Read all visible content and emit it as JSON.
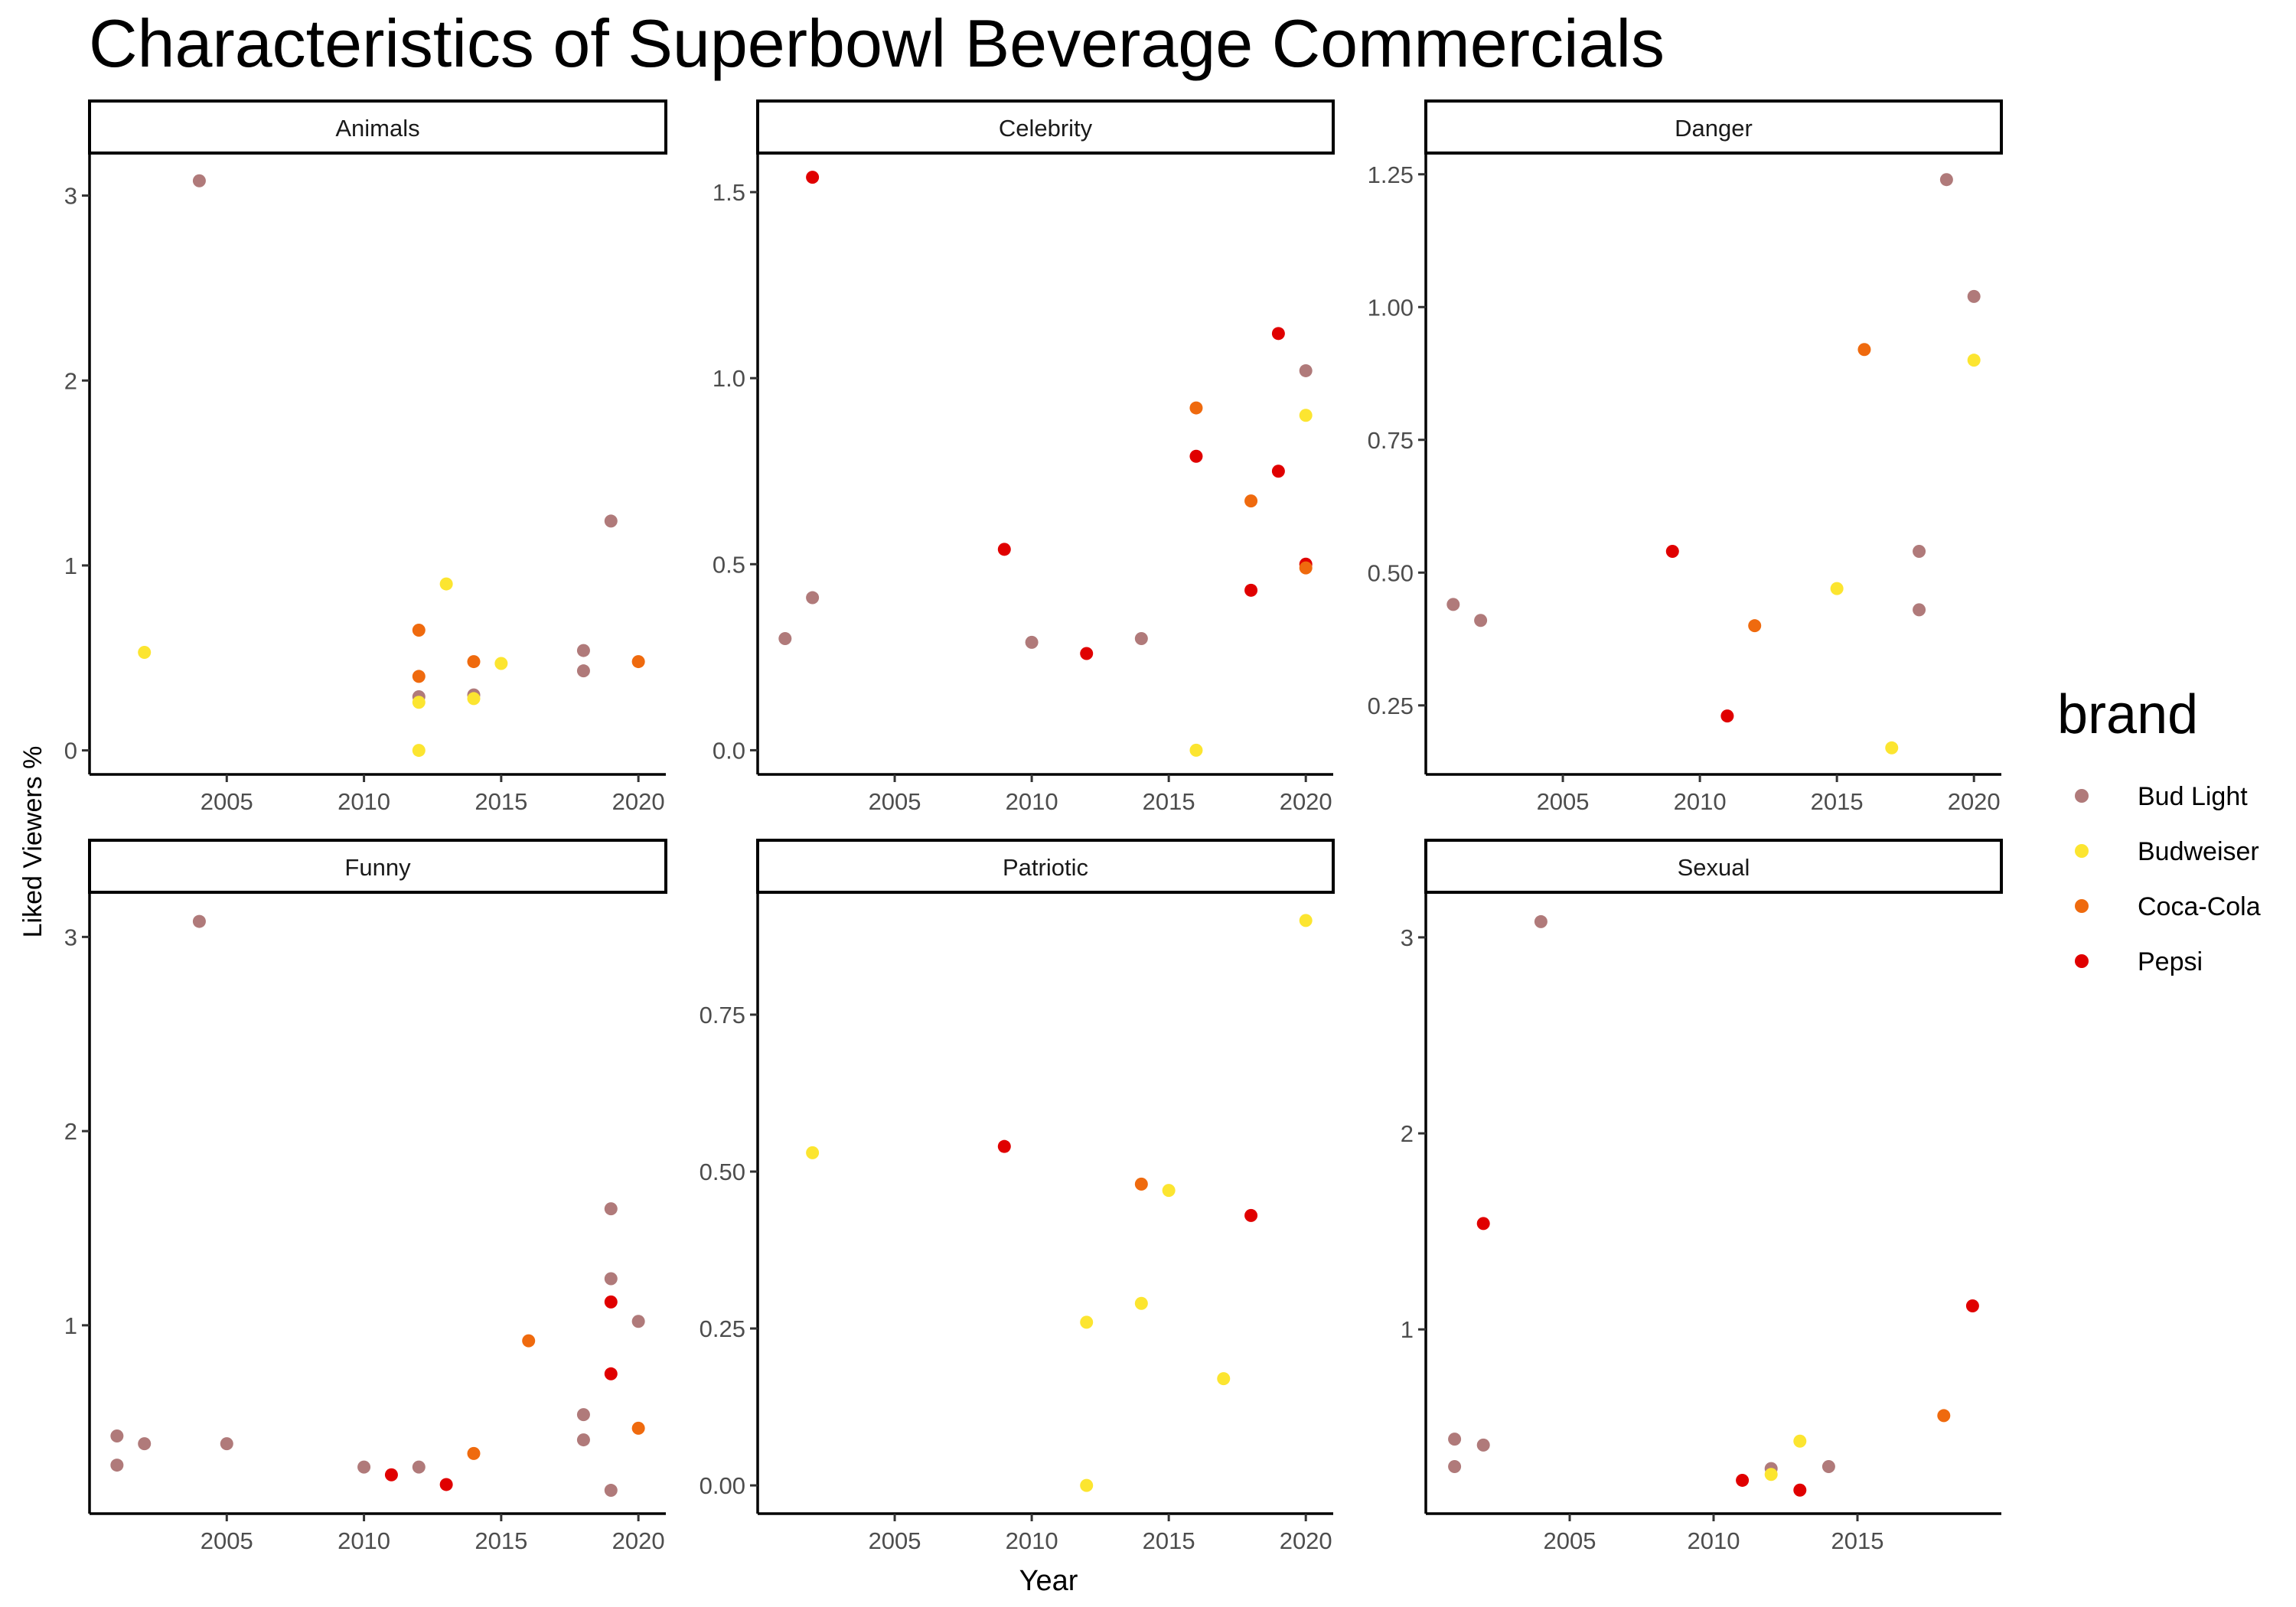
{
  "chart_data": {
    "type": "scatter",
    "title": "Characteristics of Superbowl Beverage Commercials",
    "xlabel": "Year",
    "ylabel": "Liked Viewers %",
    "grid": false,
    "legend": {
      "title": "brand",
      "position": "right",
      "entries": [
        {
          "name": "Bud Light",
          "color": "#B07A7A"
        },
        {
          "name": "Budweiser",
          "color": "#FCE530"
        },
        {
          "name": "Coca-Cola",
          "color": "#EF6A0E"
        },
        {
          "name": "Pepsi",
          "color": "#E00000"
        }
      ]
    },
    "panels": [
      {
        "label": "Animals",
        "xlim": [
          2000,
          2021
        ],
        "ylim": [
          -0.13,
          3.23
        ],
        "xticks": [
          2005,
          2010,
          2015,
          2020
        ],
        "yticks": [
          0,
          1,
          2,
          3
        ],
        "ytick_labels": [
          "0",
          "1",
          "2",
          "3"
        ],
        "points": [
          {
            "brand": "Budweiser",
            "x": 2002,
            "y": 0.53
          },
          {
            "brand": "Bud Light",
            "x": 2004,
            "y": 3.08
          },
          {
            "brand": "Coca-Cola",
            "x": 2012,
            "y": 0.65
          },
          {
            "brand": "Coca-Cola",
            "x": 2012,
            "y": 0.4
          },
          {
            "brand": "Bud Light",
            "x": 2012,
            "y": 0.29
          },
          {
            "brand": "Budweiser",
            "x": 2012,
            "y": 0.26
          },
          {
            "brand": "Budweiser",
            "x": 2012,
            "y": 0.0
          },
          {
            "brand": "Budweiser",
            "x": 2013,
            "y": 0.9
          },
          {
            "brand": "Coca-Cola",
            "x": 2014,
            "y": 0.48
          },
          {
            "brand": "Bud Light",
            "x": 2014,
            "y": 0.3
          },
          {
            "brand": "Budweiser",
            "x": 2014,
            "y": 0.28
          },
          {
            "brand": "Budweiser",
            "x": 2015,
            "y": 0.47
          },
          {
            "brand": "Bud Light",
            "x": 2018,
            "y": 0.54
          },
          {
            "brand": "Bud Light",
            "x": 2018,
            "y": 0.43
          },
          {
            "brand": "Bud Light",
            "x": 2019,
            "y": 1.24
          },
          {
            "brand": "Coca-Cola",
            "x": 2020,
            "y": 0.48
          }
        ]
      },
      {
        "label": "Celebrity",
        "xlim": [
          2000,
          2021
        ],
        "ylim": [
          -0.065,
          1.605
        ],
        "xticks": [
          2005,
          2010,
          2015,
          2020
        ],
        "yticks": [
          0,
          0.5,
          1.0,
          1.5
        ],
        "ytick_labels": [
          "0.0",
          "0.5",
          "1.0",
          "1.5"
        ],
        "points": [
          {
            "brand": "Bud Light",
            "x": 2001,
            "y": 0.3
          },
          {
            "brand": "Pepsi",
            "x": 2002,
            "y": 1.54
          },
          {
            "brand": "Bud Light",
            "x": 2002,
            "y": 0.41
          },
          {
            "brand": "Pepsi",
            "x": 2009,
            "y": 0.54
          },
          {
            "brand": "Bud Light",
            "x": 2010,
            "y": 0.29
          },
          {
            "brand": "Pepsi",
            "x": 2012,
            "y": 0.26
          },
          {
            "brand": "Bud Light",
            "x": 2014,
            "y": 0.3
          },
          {
            "brand": "Coca-Cola",
            "x": 2016,
            "y": 0.92
          },
          {
            "brand": "Pepsi",
            "x": 2016,
            "y": 0.79
          },
          {
            "brand": "Budweiser",
            "x": 2016,
            "y": 0.0
          },
          {
            "brand": "Coca-Cola",
            "x": 2018,
            "y": 0.67
          },
          {
            "brand": "Pepsi",
            "x": 2018,
            "y": 0.43
          },
          {
            "brand": "Pepsi",
            "x": 2019,
            "y": 1.12
          },
          {
            "brand": "Pepsi",
            "x": 2019,
            "y": 0.75
          },
          {
            "brand": "Bud Light",
            "x": 2020,
            "y": 1.02
          },
          {
            "brand": "Budweiser",
            "x": 2020,
            "y": 0.9
          },
          {
            "brand": "Pepsi",
            "x": 2020,
            "y": 0.5
          },
          {
            "brand": "Coca-Cola",
            "x": 2020,
            "y": 0.49
          }
        ]
      },
      {
        "label": "Danger",
        "xlim": [
          2000,
          2021
        ],
        "ylim": [
          0.12,
          1.29
        ],
        "xticks": [
          2005,
          2010,
          2015,
          2020
        ],
        "yticks": [
          0.25,
          0.5,
          0.75,
          1.0,
          1.25
        ],
        "ytick_labels": [
          "0.25",
          "0.50",
          "0.75",
          "1.00",
          "1.25"
        ],
        "points": [
          {
            "brand": "Bud Light",
            "x": 2001,
            "y": 0.44
          },
          {
            "brand": "Bud Light",
            "x": 2002,
            "y": 0.41
          },
          {
            "brand": "Pepsi",
            "x": 2009,
            "y": 0.54
          },
          {
            "brand": "Pepsi",
            "x": 2011,
            "y": 0.23
          },
          {
            "brand": "Coca-Cola",
            "x": 2012,
            "y": 0.4
          },
          {
            "brand": "Budweiser",
            "x": 2015,
            "y": 0.47
          },
          {
            "brand": "Coca-Cola",
            "x": 2016,
            "y": 0.92
          },
          {
            "brand": "Budweiser",
            "x": 2017,
            "y": 0.17
          },
          {
            "brand": "Bud Light",
            "x": 2018,
            "y": 0.54
          },
          {
            "brand": "Bud Light",
            "x": 2018,
            "y": 0.43
          },
          {
            "brand": "Bud Light",
            "x": 2019,
            "y": 1.24
          },
          {
            "brand": "Bud Light",
            "x": 2020,
            "y": 1.02
          },
          {
            "brand": "Budweiser",
            "x": 2020,
            "y": 0.9
          }
        ]
      },
      {
        "label": "Funny",
        "xlim": [
          2000,
          2021
        ],
        "ylim": [
          0.03,
          3.23
        ],
        "xticks": [
          2005,
          2010,
          2015,
          2020
        ],
        "yticks": [
          1,
          2,
          3
        ],
        "ytick_labels": [
          "1",
          "2",
          "3"
        ],
        "points": [
          {
            "brand": "Bud Light",
            "x": 2001,
            "y": 0.43
          },
          {
            "brand": "Bud Light",
            "x": 2001,
            "y": 0.28
          },
          {
            "brand": "Bud Light",
            "x": 2002,
            "y": 0.39
          },
          {
            "brand": "Bud Light",
            "x": 2004,
            "y": 3.08
          },
          {
            "brand": "Bud Light",
            "x": 2005,
            "y": 0.39
          },
          {
            "brand": "Bud Light",
            "x": 2010,
            "y": 0.27
          },
          {
            "brand": "Pepsi",
            "x": 2011,
            "y": 0.23
          },
          {
            "brand": "Bud Light",
            "x": 2012,
            "y": 0.27
          },
          {
            "brand": "Pepsi",
            "x": 2013,
            "y": 0.18
          },
          {
            "brand": "Coca-Cola",
            "x": 2014,
            "y": 0.34
          },
          {
            "brand": "Coca-Cola",
            "x": 2016,
            "y": 0.92
          },
          {
            "brand": "Bud Light",
            "x": 2018,
            "y": 0.54
          },
          {
            "brand": "Bud Light",
            "x": 2018,
            "y": 0.41
          },
          {
            "brand": "Bud Light",
            "x": 2019,
            "y": 1.6
          },
          {
            "brand": "Bud Light",
            "x": 2019,
            "y": 1.24
          },
          {
            "brand": "Pepsi",
            "x": 2019,
            "y": 1.12
          },
          {
            "brand": "Pepsi",
            "x": 2019,
            "y": 0.75
          },
          {
            "brand": "Bud Light",
            "x": 2019,
            "y": 0.15
          },
          {
            "brand": "Bud Light",
            "x": 2020,
            "y": 1.02
          },
          {
            "brand": "Coca-Cola",
            "x": 2020,
            "y": 0.47
          }
        ]
      },
      {
        "label": "Patriotic",
        "xlim": [
          2000,
          2021
        ],
        "ylim": [
          -0.045,
          0.945
        ],
        "xticks": [
          2005,
          2010,
          2015,
          2020
        ],
        "yticks": [
          0,
          0.25,
          0.5,
          0.75
        ],
        "ytick_labels": [
          "0.00",
          "0.25",
          "0.50",
          "0.75"
        ],
        "points": [
          {
            "brand": "Budweiser",
            "x": 2002,
            "y": 0.53
          },
          {
            "brand": "Pepsi",
            "x": 2009,
            "y": 0.54
          },
          {
            "brand": "Budweiser",
            "x": 2012,
            "y": 0.26
          },
          {
            "brand": "Budweiser",
            "x": 2012,
            "y": 0.0
          },
          {
            "brand": "Coca-Cola",
            "x": 2014,
            "y": 0.48
          },
          {
            "brand": "Budweiser",
            "x": 2014,
            "y": 0.29
          },
          {
            "brand": "Budweiser",
            "x": 2015,
            "y": 0.47
          },
          {
            "brand": "Budweiser",
            "x": 2017,
            "y": 0.17
          },
          {
            "brand": "Pepsi",
            "x": 2018,
            "y": 0.43
          },
          {
            "brand": "Budweiser",
            "x": 2020,
            "y": 0.9
          }
        ]
      },
      {
        "label": "Sexual",
        "xlim": [
          2000,
          2020
        ],
        "ylim": [
          0.06,
          3.23
        ],
        "xticks": [
          2005,
          2010,
          2015
        ],
        "yticks": [
          1,
          2,
          3
        ],
        "ytick_labels": [
          "1",
          "2",
          "3"
        ],
        "points": [
          {
            "brand": "Bud Light",
            "x": 2001,
            "y": 0.44
          },
          {
            "brand": "Bud Light",
            "x": 2001,
            "y": 0.3
          },
          {
            "brand": "Bud Light",
            "x": 2002,
            "y": 0.41
          },
          {
            "brand": "Pepsi",
            "x": 2002,
            "y": 1.54
          },
          {
            "brand": "Bud Light",
            "x": 2004,
            "y": 3.08
          },
          {
            "brand": "Pepsi",
            "x": 2011,
            "y": 0.23
          },
          {
            "brand": "Bud Light",
            "x": 2012,
            "y": 0.29
          },
          {
            "brand": "Budweiser",
            "x": 2012,
            "y": 0.26
          },
          {
            "brand": "Budweiser",
            "x": 2013,
            "y": 0.43
          },
          {
            "brand": "Pepsi",
            "x": 2013,
            "y": 0.18
          },
          {
            "brand": "Bud Light",
            "x": 2014,
            "y": 0.3
          },
          {
            "brand": "Coca-Cola",
            "x": 2018,
            "y": 0.56
          },
          {
            "brand": "Pepsi",
            "x": 2019,
            "y": 1.12
          }
        ]
      }
    ]
  }
}
